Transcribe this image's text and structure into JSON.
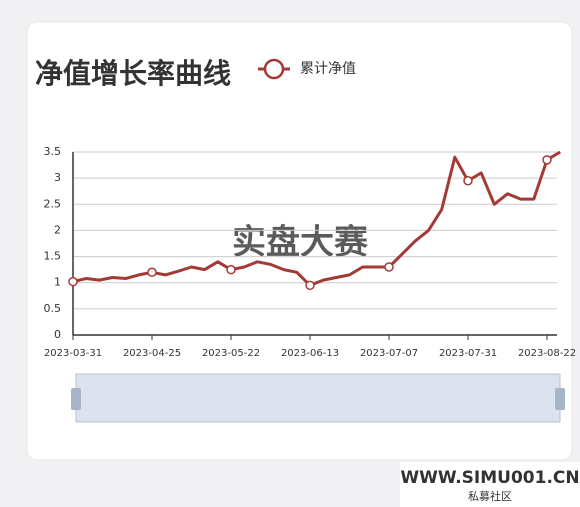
{
  "chart_data": {
    "type": "line",
    "title": "净值增长率曲线",
    "categories": [
      "2023-03-31",
      null,
      null,
      null,
      null,
      null,
      "2023-04-25",
      null,
      null,
      null,
      null,
      null,
      "2023-05-22",
      null,
      null,
      null,
      null,
      null,
      "2023-06-13",
      null,
      null,
      null,
      null,
      null,
      "2023-07-07",
      null,
      null,
      null,
      null,
      null,
      "2023-07-31",
      null,
      null,
      null,
      null,
      null,
      "2023-08-22",
      null
    ],
    "series": [
      {
        "name": "累计净值",
        "color": "#a33a35",
        "values": [
          1.02,
          1.08,
          1.05,
          1.1,
          1.08,
          1.15,
          1.2,
          1.15,
          1.22,
          1.3,
          1.25,
          1.4,
          1.25,
          1.3,
          1.4,
          1.35,
          1.25,
          1.2,
          0.95,
          1.05,
          1.1,
          1.15,
          1.3,
          1.3,
          1.3,
          1.55,
          1.8,
          2.0,
          2.4,
          3.4,
          2.95,
          3.1,
          2.5,
          2.7,
          2.6,
          2.6,
          3.35,
          3.5
        ]
      }
    ],
    "ylim": [
      0,
      3.5
    ],
    "yticks": [
      0,
      0.5,
      1,
      1.5,
      2,
      2.5,
      3,
      3.5
    ],
    "grid": true,
    "annotations": [
      "实盘大赛",
      "WWW.SIMU001.CN",
      "私募社区"
    ]
  }
}
